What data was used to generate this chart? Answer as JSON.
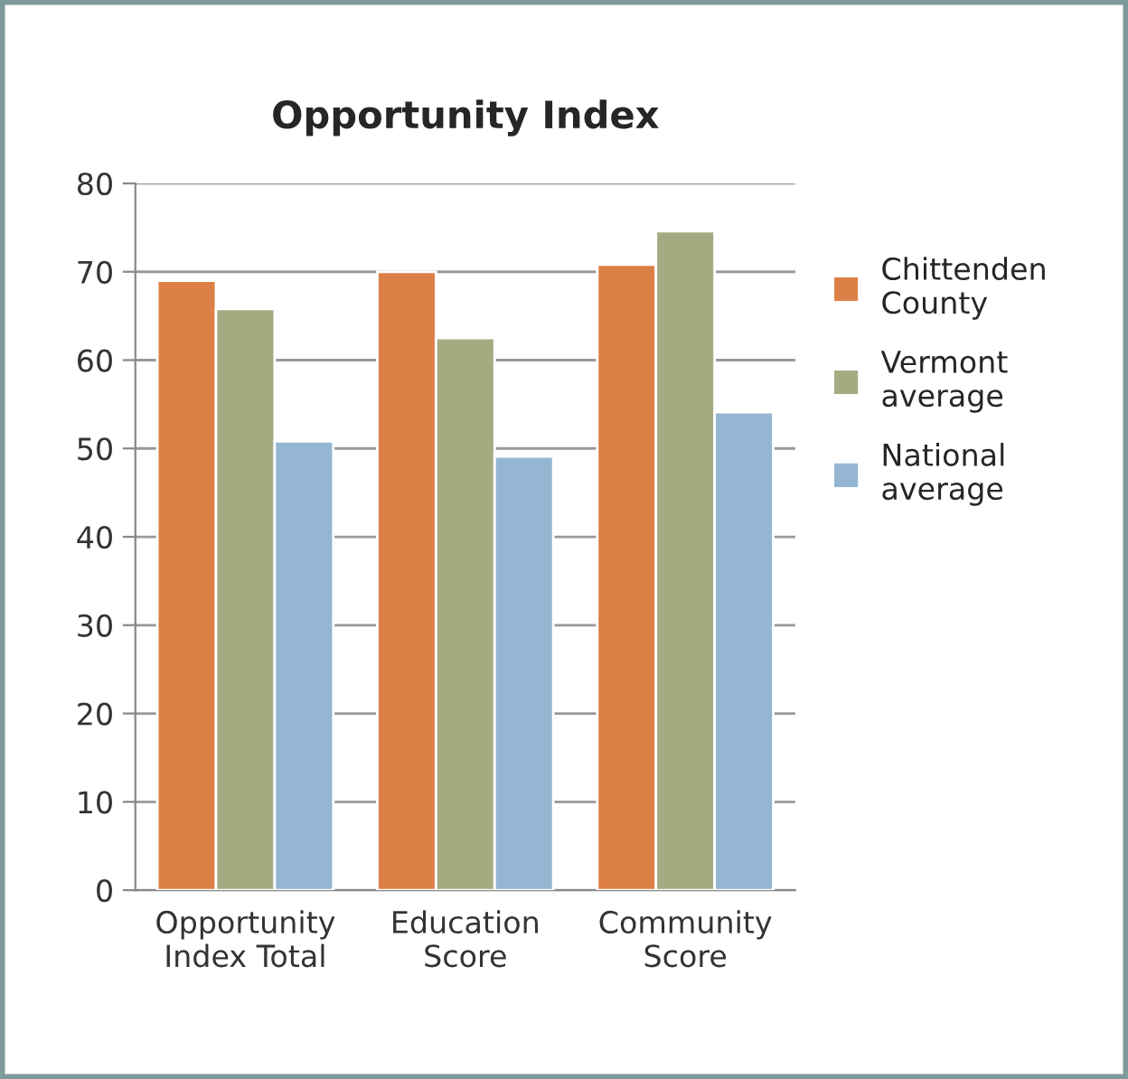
{
  "chart_data": {
    "type": "bar",
    "title": "Opportunity Index",
    "categories": [
      "Opportunity\nIndex Total",
      "Education\nScore",
      "Community\nScore"
    ],
    "series": [
      {
        "name": "Chittenden\nCounty",
        "color": "#dd8047",
        "values": [
          69.0,
          70.0,
          70.8
        ]
      },
      {
        "name": "Vermont\naverage",
        "color": "#a5ab81",
        "values": [
          65.8,
          62.5,
          74.6
        ]
      },
      {
        "name": "National\naverage",
        "color": "#94b6d2",
        "values": [
          50.8,
          49.1,
          54.1
        ]
      }
    ],
    "ylim": [
      0,
      80
    ],
    "yticks": [
      0,
      10,
      20,
      30,
      40,
      50,
      60,
      70,
      80
    ],
    "grid": "y",
    "legend": "right"
  }
}
